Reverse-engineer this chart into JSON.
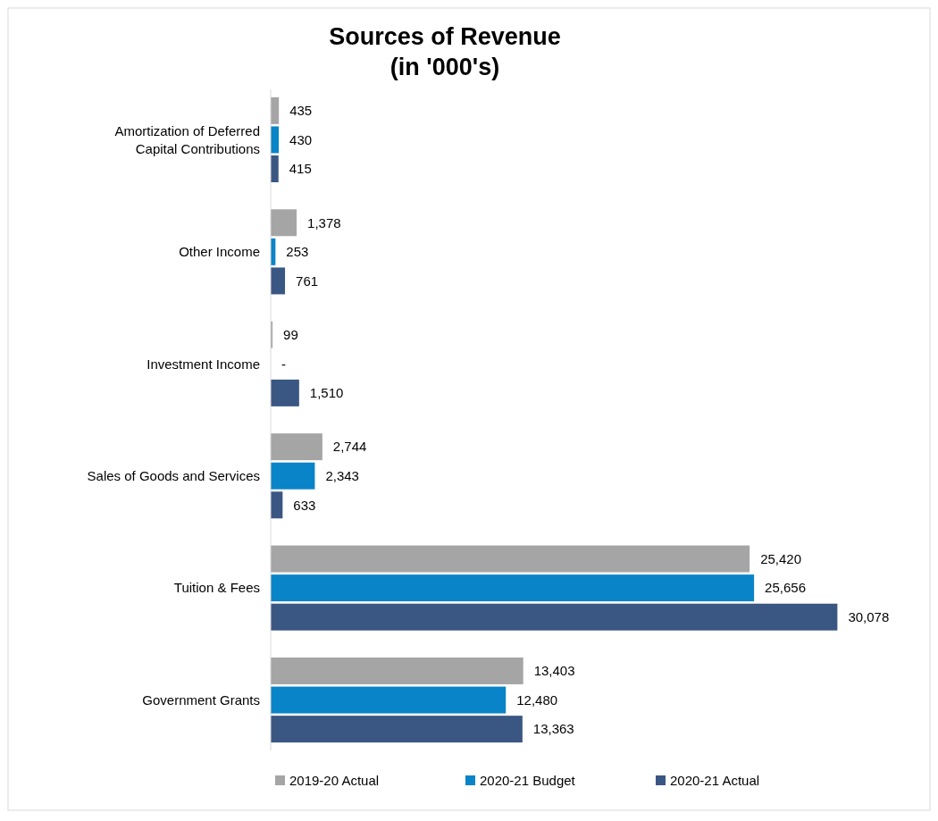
{
  "chart_data": {
    "type": "bar",
    "orientation": "horizontal",
    "title": "Sources of Revenue\n(in '000's)",
    "categories": [
      "Amortization of Deferred Capital Contributions",
      "Other Income",
      "Investment Income",
      "Sales of Goods and Services",
      "Tuition & Fees",
      "Government Grants"
    ],
    "series": [
      {
        "name": "2019-20 Actual",
        "color": "#a5a5a5",
        "values": [
          435,
          1378,
          99,
          2744,
          25420,
          13403
        ],
        "value_labels": [
          "435",
          "1,378",
          "99",
          "2,744",
          "25,420",
          "13,403"
        ]
      },
      {
        "name": "2020-21 Budget",
        "color": "#0a84c8",
        "values": [
          430,
          253,
          0,
          2343,
          25656,
          12480
        ],
        "value_labels": [
          "430",
          "253",
          "-",
          "2,343",
          "25,656",
          "12,480"
        ]
      },
      {
        "name": "2020-21 Actual",
        "color": "#3a5683",
        "values": [
          415,
          761,
          1510,
          633,
          30078,
          13363
        ],
        "value_labels": [
          "415",
          "761",
          "1,510",
          "633",
          "30,078",
          "13,363"
        ]
      }
    ],
    "tick_labels": "y",
    "legend": "bottom"
  }
}
